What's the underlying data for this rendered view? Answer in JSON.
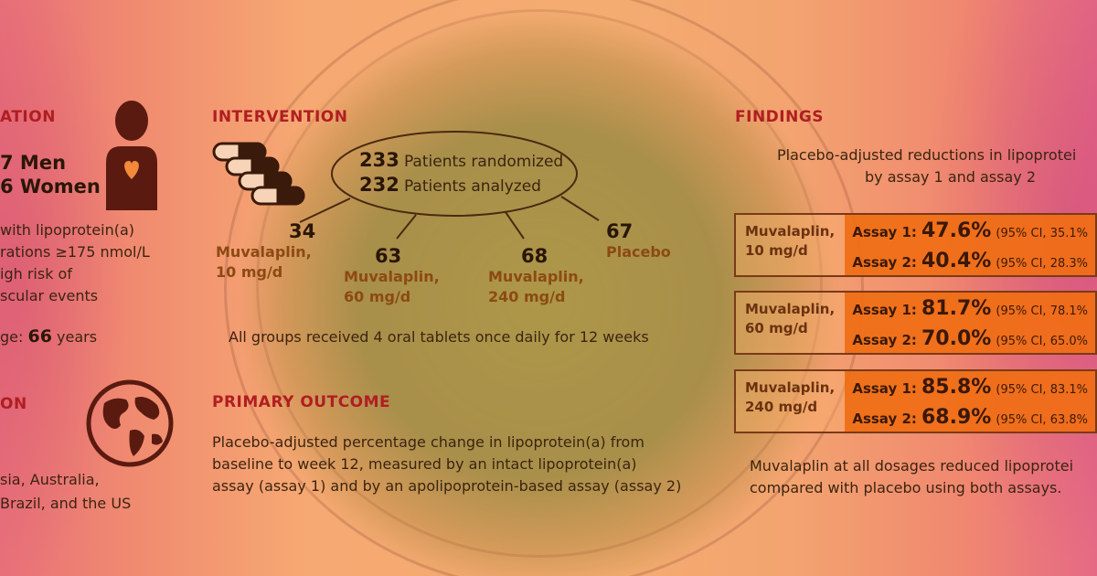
{
  "population": {
    "heading": "ATION",
    "men": "7 Men",
    "women": "6 Women",
    "criteria_lines": [
      "with lipoprotein(a)",
      "rations ≥175 nmol/L",
      "igh risk of",
      "scular events"
    ],
    "age_prefix": "ge:",
    "age_value": "66",
    "age_suffix": "years"
  },
  "location": {
    "heading": "ON",
    "lines": [
      "sia, Australia,",
      "Brazil, and the US"
    ]
  },
  "intervention": {
    "heading": "INTERVENTION",
    "randomized_num": "233",
    "randomized_text": "Patients randomized",
    "analyzed_num": "232",
    "analyzed_text": "Patients analyzed",
    "arms": [
      {
        "n": "34",
        "name_line1": "Muvalaplin,",
        "name_line2": "10 mg/d"
      },
      {
        "n": "63",
        "name_line1": "Muvalaplin,",
        "name_line2": "60 mg/d"
      },
      {
        "n": "68",
        "name_line1": "Muvalaplin,",
        "name_line2": "240 mg/d"
      },
      {
        "n": "67",
        "name_line1": "Placebo",
        "name_line2": ""
      }
    ],
    "note": "All groups received 4 oral tablets once daily for 12 weeks"
  },
  "primary_outcome": {
    "heading": "PRIMARY OUTCOME",
    "lines": [
      "Placebo-adjusted percentage change in lipoprotein(a) from",
      "baseline to week 12, measured by an intact lipoprotein(a)",
      "assay (assay 1) and by an apolipoprotein-based assay (assay 2)"
    ]
  },
  "findings": {
    "heading": "FINDINGS",
    "subtitle_line1": "Placebo-adjusted reductions in lipoprotei",
    "subtitle_line2": "by assay 1 and assay 2",
    "rows": [
      {
        "label1": "Muvalaplin,",
        "label2": "10 mg/d",
        "a1_label": "Assay 1:",
        "a1_pct": "47.6%",
        "a1_ci": "(95% CI, 35.1%",
        "a2_label": "Assay 2:",
        "a2_pct": "40.4%",
        "a2_ci": "(95% CI, 28.3%"
      },
      {
        "label1": "Muvalaplin,",
        "label2": "60 mg/d",
        "a1_label": "Assay 1:",
        "a1_pct": "81.7%",
        "a1_ci": "(95% CI, 78.1%",
        "a2_label": "Assay 2:",
        "a2_pct": "70.0%",
        "a2_ci": "(95% CI, 65.0%"
      },
      {
        "label1": "Muvalaplin,",
        "label2": "240 mg/d",
        "a1_label": "Assay 1:",
        "a1_pct": "85.8%",
        "a1_ci": "(95% CI, 83.1%",
        "a2_label": "Assay 2:",
        "a2_pct": "68.9%",
        "a2_ci": "(95% CI, 63.8%"
      }
    ],
    "conclusion_line1": "Muvalaplin at all dosages reduced lipoprotei",
    "conclusion_line2": "compared with placebo using both assays."
  },
  "colors": {
    "heading": "#b01e22",
    "result_fill": "#f06e14",
    "arm_label": "#8c4a12"
  },
  "icons": [
    "person-heart-icon",
    "globe-icon",
    "pills-icon"
  ]
}
